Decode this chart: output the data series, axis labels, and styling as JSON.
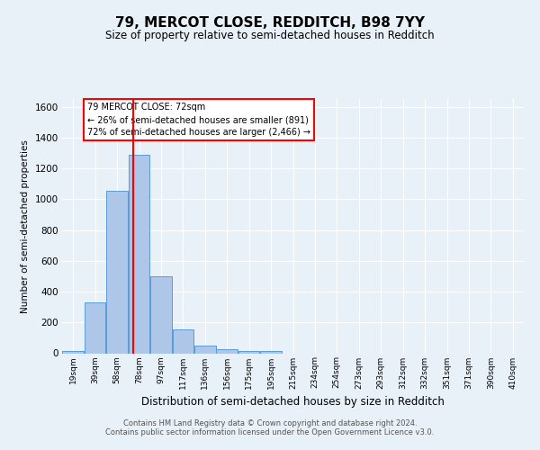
{
  "title": "79, MERCOT CLOSE, REDDITCH, B98 7YY",
  "subtitle": "Size of property relative to semi-detached houses in Redditch",
  "xlabel": "Distribution of semi-detached houses by size in Redditch",
  "ylabel": "Number of semi-detached properties",
  "footer_line1": "Contains HM Land Registry data © Crown copyright and database right 2024.",
  "footer_line2": "Contains public sector information licensed under the Open Government Licence v3.0.",
  "categories": [
    "19sqm",
    "39sqm",
    "58sqm",
    "78sqm",
    "97sqm",
    "117sqm",
    "136sqm",
    "156sqm",
    "175sqm",
    "195sqm",
    "215sqm",
    "234sqm",
    "254sqm",
    "273sqm",
    "293sqm",
    "312sqm",
    "332sqm",
    "351sqm",
    "371sqm",
    "390sqm",
    "410sqm"
  ],
  "values": [
    15,
    328,
    1055,
    1290,
    500,
    152,
    50,
    25,
    15,
    12,
    0,
    0,
    0,
    0,
    0,
    0,
    0,
    0,
    0,
    0,
    0
  ],
  "bar_color": "#aec6e8",
  "bar_edge_color": "#5b9bd5",
  "bar_edge_width": 0.7,
  "ylim": [
    0,
    1650
  ],
  "yticks": [
    0,
    200,
    400,
    600,
    800,
    1000,
    1200,
    1400,
    1600
  ],
  "property_label": "79 MERCOT CLOSE: 72sqm",
  "pct_smaller": 26,
  "count_smaller": 891,
  "pct_larger": 72,
  "count_larger": 2466,
  "background_color": "#e8f0f8",
  "grid_color": "#ffffff",
  "n_bins": 21,
  "red_line_index": 3
}
